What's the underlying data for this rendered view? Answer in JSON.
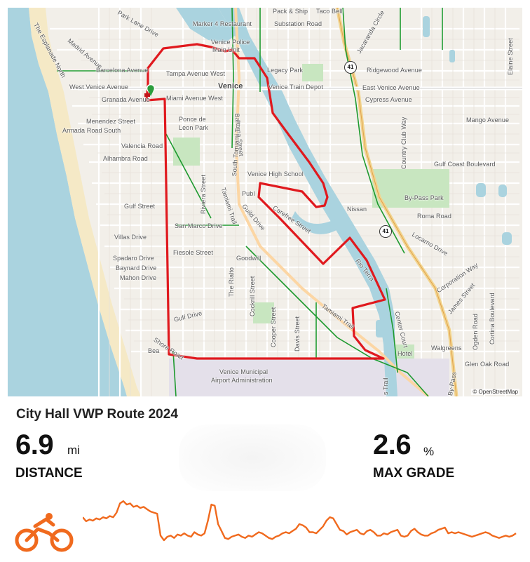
{
  "title": "City Hall VWP Route 2024",
  "stats": {
    "distance": {
      "value": "6.9",
      "unit": "mi",
      "label": "DISTANCE"
    },
    "grade": {
      "value": "2.6",
      "unit": "%",
      "label": "MAX GRADE"
    }
  },
  "map": {
    "attribution": "© OpenStreetMap",
    "route_color": "#e0191e",
    "water_color": "#aad3df",
    "elevation_color": "#f06a1e",
    "labels": {
      "park_lane": "Park Lane Drive",
      "esplanade": "The Esplanade North",
      "madrid": "Madrid Avenue",
      "marker4": "Marker 4 Restaurant",
      "pack_ship": "Pack & Ship",
      "taco_bell": "Taco Bell",
      "substation": "Substation Road",
      "jacaranda_circle": "Jacaranda Circle",
      "barcelona": "Barcelona Avenue",
      "venice_police": "Venice Police",
      "main_unit": "Main Unit",
      "legacy_park": "Legacy Park",
      "ridgewood": "Ridgewood Avenue",
      "tampa": "Tampa Avenue West",
      "west_venice": "West Venice Avenue",
      "venice": "Venice",
      "venice_train": "Venice Train Depot",
      "east_venice": "East Venice Avenue",
      "granada": "Granada Avenue",
      "miami": "Miami Avenue West",
      "cypress": "Cypress Avenue",
      "menendez": "Menendez Street",
      "ponce": "Ponce de",
      "leon_park": "Leon Park",
      "mango": "Mango Avenue",
      "armada": "Armada Road South",
      "valencia": "Valencia Road",
      "alhambra": "Alhambra Road",
      "venice_high": "Venice High School",
      "gulf_coast": "Gulf Coast Boulevard",
      "bypass_park": "By-Pass Park",
      "publix": "Publ",
      "gulf_street": "Gulf Street",
      "nissan": "Nissan",
      "roma": "Roma Road",
      "carefree": "Carefree Street",
      "san_marco": "San Marco Drive",
      "villas": "Villas Drive",
      "locarno": "Locarno Drive",
      "fiesole": "Fiesole Street",
      "spadaro": "Spadaro Drive",
      "goodwill": "Goodwill",
      "baynard": "Baynard Drive",
      "mahon": "Mahon Drive",
      "corporation": "Corporation Way",
      "rio_terra": "Rio Terra",
      "james": "James Street",
      "gulf_drive": "Gulf Drive",
      "center_court": "Center Court",
      "walgreens": "Walgreens",
      "shore": "Shore Road",
      "hotel": "Hotel",
      "glen_oak": "Glen Oak Road",
      "beach": "Bea",
      "airport1": "Venice Municipal",
      "airport2": "Airport Administration",
      "elaine": "Elaine Street",
      "country_club": "Country Club Way",
      "bahama": "Bahama Street",
      "south_tamiami": "South Tamiami Trail",
      "tamiami": "Tamiami Trail",
      "tamiami2": "Tamiami Trail",
      "guild": "Guild Drive",
      "riviera": "Riviera Street",
      "rialto": "The Rialto",
      "cockrill": "Cockrill Street",
      "cooper": "Cooper Street",
      "davis": "Davis Street",
      "ogden": "Ogden Road",
      "cortina": "Cortina Boulevard",
      "bypass": "By-Pass",
      "trail": "s Trail",
      "shield41": "41",
      "shield41b": "41"
    }
  },
  "elevation_profile": [
    0.62,
    0.55,
    0.58,
    0.56,
    0.6,
    0.58,
    0.62,
    0.6,
    0.64,
    0.62,
    0.7,
    0.86,
    0.9,
    0.84,
    0.86,
    0.8,
    0.82,
    0.78,
    0.8,
    0.76,
    0.72,
    0.7,
    0.68,
    0.3,
    0.22,
    0.28,
    0.3,
    0.26,
    0.32,
    0.3,
    0.34,
    0.3,
    0.28,
    0.36,
    0.32,
    0.3,
    0.34,
    0.56,
    0.84,
    0.82,
    0.5,
    0.38,
    0.26,
    0.24,
    0.28,
    0.3,
    0.32,
    0.28,
    0.26,
    0.3,
    0.28,
    0.32,
    0.36,
    0.34,
    0.3,
    0.26,
    0.24,
    0.28,
    0.3,
    0.34,
    0.36,
    0.34,
    0.38,
    0.42,
    0.5,
    0.48,
    0.44,
    0.36,
    0.36,
    0.34,
    0.4,
    0.46,
    0.56,
    0.62,
    0.6,
    0.5,
    0.4,
    0.38,
    0.32,
    0.36,
    0.38,
    0.4,
    0.34,
    0.32,
    0.38,
    0.4,
    0.36,
    0.3,
    0.3,
    0.34,
    0.32,
    0.36,
    0.38,
    0.4,
    0.3,
    0.28,
    0.3,
    0.38,
    0.42,
    0.36,
    0.32,
    0.3,
    0.3,
    0.34,
    0.36,
    0.4,
    0.42,
    0.44,
    0.34,
    0.36,
    0.34,
    0.36,
    0.34,
    0.32,
    0.3,
    0.28,
    0.3,
    0.32,
    0.34,
    0.36,
    0.34,
    0.3,
    0.28,
    0.26,
    0.28,
    0.3,
    0.28,
    0.3,
    0.34
  ]
}
